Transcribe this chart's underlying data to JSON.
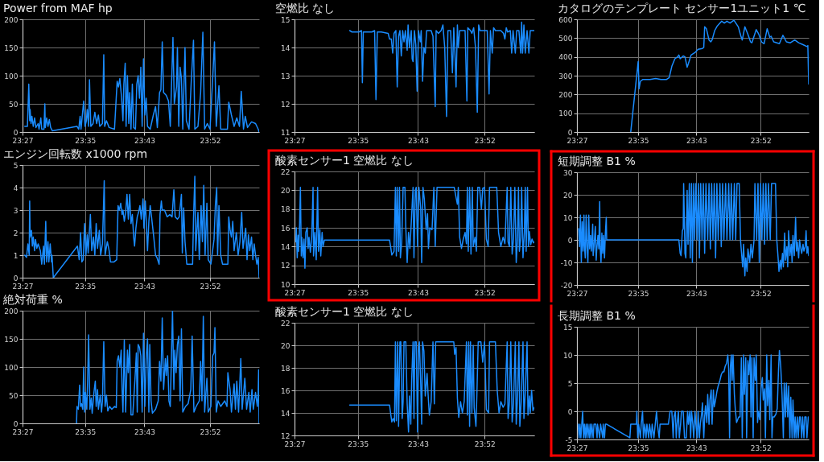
{
  "chart_data": [
    {
      "type": "line",
      "title": "Power from MAF hp",
      "color": "#1a8cff",
      "grid": true,
      "xlim": [
        23.45,
        23.98
      ],
      "xticks": [
        {
          "value": 23.45,
          "label": "23:27"
        },
        {
          "value": 23.59,
          "label": "23:35"
        },
        {
          "value": 23.723,
          "label": "23:43"
        },
        {
          "value": 23.87,
          "label": "23:52"
        }
      ],
      "ylim": [
        0,
        200
      ],
      "yticks": [
        0,
        50,
        100,
        150,
        200
      ],
      "x": [
        23.455,
        23.461,
        23.464,
        23.466,
        23.467,
        23.469,
        23.471,
        23.474,
        23.477,
        23.48,
        23.485,
        23.487,
        23.491,
        23.493,
        23.498,
        23.5,
        23.501,
        23.504,
        23.507,
        23.51,
        23.513,
        23.517,
        23.572,
        23.576,
        23.579,
        23.581,
        23.587,
        23.59,
        23.593,
        23.595,
        23.598,
        23.6,
        23.603,
        23.608,
        23.612,
        23.616,
        23.62,
        23.623,
        23.629,
        23.632,
        23.634,
        23.638,
        23.644,
        23.656,
        23.662,
        23.665,
        23.668,
        23.672,
        23.675,
        23.677,
        23.68,
        23.682,
        23.685,
        23.688,
        23.69,
        23.693,
        23.696,
        23.699,
        23.703,
        23.706,
        23.709,
        23.712,
        23.715,
        23.718,
        23.721,
        23.724,
        23.727,
        23.73,
        23.736,
        23.743,
        23.748,
        23.752,
        23.757,
        23.76,
        23.763,
        23.766,
        23.772,
        23.777,
        23.781,
        23.787,
        23.79,
        23.795,
        23.797,
        23.8,
        23.803,
        23.806,
        23.809,
        23.814,
        23.817,
        23.823,
        23.828,
        23.833,
        23.836,
        23.843,
        23.849,
        23.854,
        23.858,
        23.864,
        23.87,
        23.876,
        23.88,
        23.884,
        23.89,
        23.894,
        23.909,
        23.912,
        23.918,
        23.924,
        23.93,
        23.936,
        23.94,
        23.945,
        23.949,
        23.954,
        23.963,
        23.972,
        23.978,
        23.98
      ],
      "values": [
        10,
        10,
        85,
        20,
        40,
        15,
        28,
        10,
        25,
        8,
        15,
        5,
        25,
        5,
        5,
        50,
        8,
        25,
        10,
        22,
        8,
        2,
        10,
        5,
        28,
        5,
        55,
        10,
        20,
        40,
        10,
        93,
        10,
        15,
        35,
        15,
        30,
        10,
        15,
        137,
        10,
        20,
        8,
        5,
        90,
        80,
        95,
        60,
        20,
        85,
        122,
        10,
        100,
        15,
        70,
        5,
        85,
        8,
        5,
        85,
        100,
        60,
        115,
        10,
        130,
        30,
        60,
        10,
        5,
        30,
        45,
        8,
        70,
        75,
        160,
        70,
        65,
        55,
        10,
        168,
        50,
        80,
        150,
        10,
        115,
        95,
        5,
        150,
        20,
        5,
        90,
        163,
        5,
        10,
        70,
        177,
        5,
        15,
        5,
        95,
        160,
        10,
        82,
        5,
        5,
        53,
        30,
        10,
        25,
        10,
        72,
        5,
        28,
        8,
        18,
        15,
        5,
        0
      ]
    },
    {
      "type": "line",
      "title": "エンジン回転数 x1000 rpm",
      "color": "#1a8cff",
      "grid": true,
      "xlim": [
        23.45,
        23.98
      ],
      "xticks": [
        {
          "value": 23.45,
          "label": "23:27"
        },
        {
          "value": 23.59,
          "label": "23:35"
        },
        {
          "value": 23.723,
          "label": "23:43"
        },
        {
          "value": 23.87,
          "label": "23:52"
        }
      ],
      "ylim": [
        0,
        5
      ],
      "yticks": [
        0,
        1,
        2,
        3,
        4,
        5
      ],
      "x": [
        23.455,
        23.459,
        23.462,
        23.465,
        23.466,
        23.467,
        23.47,
        23.472,
        23.474,
        23.477,
        23.479,
        23.482,
        23.485,
        23.49,
        23.493,
        23.497,
        23.499,
        23.502,
        23.504,
        23.507,
        23.509,
        23.512,
        23.515,
        23.516,
        23.519,
        23.573,
        23.577,
        23.58,
        23.583,
        23.586,
        23.589,
        23.592,
        23.595,
        23.597,
        23.602,
        23.605,
        23.609,
        23.612,
        23.615,
        23.618,
        23.622,
        23.625,
        23.629,
        23.633,
        23.635,
        23.64,
        23.644,
        23.647,
        23.655,
        23.661,
        23.664,
        23.667,
        23.67,
        23.673,
        23.675,
        23.678,
        23.681,
        23.684,
        23.687,
        23.69,
        23.693,
        23.696,
        23.699,
        23.701,
        23.704,
        23.707,
        23.71,
        23.713,
        23.716,
        23.72,
        23.722,
        23.725,
        23.727,
        23.73,
        23.733,
        23.736,
        23.739,
        23.744,
        23.748,
        23.751,
        23.756,
        23.758,
        23.761,
        23.763,
        23.768,
        23.774,
        23.78,
        23.785,
        23.789,
        23.792,
        23.797,
        23.801,
        23.806,
        23.808,
        23.811,
        23.814,
        23.818,
        23.826,
        23.831,
        23.833,
        23.836,
        23.838,
        23.843,
        23.846,
        23.85,
        23.853,
        23.856,
        23.859,
        23.863,
        23.866,
        23.872,
        23.879,
        23.882,
        23.885,
        23.887,
        23.89,
        23.894,
        23.898,
        23.91,
        23.912,
        23.915,
        23.918,
        23.921,
        23.924,
        23.929,
        23.933,
        23.937,
        23.941,
        23.944,
        23.95,
        23.953,
        23.956,
        23.959,
        23.963,
        23.966,
        23.969,
        23.972,
        23.975,
        23.978,
        23.98
      ],
      "values": [
        1.0,
        0.9,
        1.5,
        1.0,
        3.4,
        1.8,
        2.1,
        1.4,
        1.8,
        1.2,
        1.7,
        1.3,
        1.5,
        1.2,
        0.6,
        1.4,
        0.6,
        2.5,
        0.7,
        1.6,
        0.7,
        1.5,
        0.7,
        1.0,
        0,
        1.4,
        0.8,
        2.0,
        0.7,
        0.8,
        2.4,
        1.0,
        1.9,
        1.1,
        2.8,
        1.2,
        1.8,
        1.0,
        2.4,
        1.3,
        2.1,
        1.0,
        1.5,
        4.3,
        1.0,
        1.6,
        1.2,
        0.7,
        0.7,
        0.8,
        3.2,
        3.0,
        3.3,
        2.8,
        3.0,
        2.5,
        2.9,
        3.7,
        2.6,
        3.7,
        2.4,
        2.8,
        1.8,
        1.4,
        2.2,
        2.7,
        2.9,
        3.2,
        2.6,
        3.5,
        2.2,
        3.4,
        2.6,
        1.2,
        2.5,
        3.2,
        2.7,
        1.8,
        1.0,
        0.9,
        0.6,
        2.8,
        3.4,
        3.0,
        3.0,
        2.7,
        2.8,
        2.7,
        3.9,
        2.7,
        2.6,
        2.7,
        3.7,
        1.1,
        3.1,
        1.6,
        0.6,
        0.6,
        0.6,
        2.6,
        4.5,
        1.2,
        2.9,
        0.8,
        3.2,
        1.6,
        4.1,
        1.0,
        3.3,
        0.8,
        0.6,
        1.7,
        3.2,
        4.0,
        1.0,
        3.2,
        1.0,
        0.6,
        0.6,
        2.7,
        2.1,
        1.8,
        2.5,
        1.2,
        2.0,
        1.0,
        1.6,
        2.9,
        1.3,
        2.2,
        0.8,
        1.9,
        1.2,
        1.8,
        0.8,
        1.5,
        1.0,
        0.6,
        0.9,
        0
      ]
    },
    {
      "type": "line",
      "title": "絶対荷重 %",
      "color": "#1a8cff",
      "grid": true,
      "xlim": [
        23.45,
        23.98
      ],
      "xticks": [
        {
          "value": 23.45,
          "label": "23:27"
        },
        {
          "value": 23.59,
          "label": "23:35"
        },
        {
          "value": 23.723,
          "label": "23:43"
        },
        {
          "value": 23.87,
          "label": "23:52"
        }
      ],
      "ylim": [
        0,
        200
      ],
      "yticks": [
        0,
        50,
        100,
        150,
        200
      ],
      "x": [
        23.571,
        23.572,
        23.575,
        23.578,
        23.58,
        23.582,
        23.585,
        23.587,
        23.589,
        23.591,
        23.594,
        23.596,
        23.598,
        23.601,
        23.604,
        23.606,
        23.61,
        23.613,
        23.615,
        23.618,
        23.62,
        23.624,
        23.627,
        23.629,
        23.632,
        23.635,
        23.638,
        23.641,
        23.645,
        23.65,
        23.656,
        23.66,
        23.662,
        23.665,
        23.668,
        23.671,
        23.673,
        23.675,
        23.678,
        23.681,
        23.685,
        23.687,
        23.69,
        23.693,
        23.697,
        23.702,
        23.705,
        23.707,
        23.709,
        23.712,
        23.715,
        23.718,
        23.721,
        23.724,
        23.727,
        23.73,
        23.733,
        23.735,
        23.738,
        23.741,
        23.748,
        23.754,
        23.757,
        23.76,
        23.763,
        23.766,
        23.77,
        23.772,
        23.775,
        23.778,
        23.781,
        23.786,
        23.789,
        23.791,
        23.794,
        23.797,
        23.8,
        23.803,
        23.806,
        23.809,
        23.815,
        23.821,
        23.827,
        23.83,
        23.834,
        23.839,
        23.846,
        23.849,
        23.852,
        23.855,
        23.858,
        23.863,
        23.866,
        23.872,
        23.876,
        23.879,
        23.881,
        23.884,
        23.888,
        23.894,
        23.903,
        23.908,
        23.91,
        23.915,
        23.918,
        23.924,
        23.927,
        23.93,
        23.934,
        23.939,
        23.942,
        23.948,
        23.952,
        23.957,
        23.96,
        23.964,
        23.967,
        23.972,
        23.976,
        23.978,
        23.979,
        23.98
      ],
      "values": [
        0,
        30,
        25,
        68,
        30,
        35,
        25,
        100,
        20,
        55,
        25,
        80,
        157,
        25,
        45,
        18,
        55,
        75,
        30,
        60,
        25,
        50,
        20,
        40,
        145,
        30,
        50,
        22,
        30,
        25,
        30,
        28,
        110,
        120,
        100,
        130,
        60,
        20,
        148,
        20,
        130,
        90,
        140,
        15,
        15,
        80,
        125,
        20,
        140,
        135,
        120,
        20,
        160,
        30,
        115,
        150,
        20,
        140,
        40,
        18,
        25,
        40,
        110,
        75,
        187,
        60,
        115,
        85,
        120,
        40,
        30,
        200,
        60,
        130,
        90,
        140,
        155,
        40,
        168,
        20,
        30,
        35,
        60,
        155,
        20,
        30,
        40,
        110,
        40,
        190,
        20,
        80,
        20,
        30,
        120,
        125,
        170,
        20,
        40,
        30,
        40,
        30,
        90,
        60,
        20,
        70,
        25,
        75,
        20,
        115,
        25,
        80,
        25,
        55,
        20,
        60,
        25,
        55,
        30,
        55,
        95,
        0
      ]
    },
    {
      "type": "line",
      "title": "空燃比 なし",
      "color": "#1a8cff",
      "grid": true,
      "xlim": [
        23.45,
        23.98
      ],
      "xticks": [
        {
          "value": 23.45,
          "label": "23:27"
        },
        {
          "value": 23.59,
          "label": "23:35"
        },
        {
          "value": 23.723,
          "label": "23:43"
        },
        {
          "value": 23.87,
          "label": "23:52"
        }
      ],
      "ylim": [
        11,
        15
      ],
      "yticks": [
        11,
        12,
        13,
        14,
        15
      ],
      "x": [
        23.572,
        23.577,
        23.583,
        23.592,
        23.598,
        23.6,
        23.602,
        23.613,
        23.621,
        23.627,
        23.63,
        23.633,
        23.642,
        23.657,
        23.66,
        23.664,
        23.667,
        23.67,
        23.674,
        23.677,
        23.68,
        23.683,
        23.686,
        23.689,
        23.692,
        23.695,
        23.699,
        23.701,
        23.704,
        23.708,
        23.71,
        23.712,
        23.715,
        23.718,
        23.721,
        23.724,
        23.728,
        23.73,
        23.733,
        23.736,
        23.739,
        23.742,
        23.748,
        23.752,
        23.756,
        23.761,
        23.763,
        23.768,
        23.774,
        23.778,
        23.782,
        23.786,
        23.789,
        23.795,
        23.799,
        23.802,
        23.805,
        23.807,
        23.81,
        23.812,
        23.815,
        23.821,
        23.827,
        23.831,
        23.833,
        23.839,
        23.842,
        23.846,
        23.85,
        23.854,
        23.857,
        23.86,
        23.865,
        23.871,
        23.876,
        23.88,
        23.883,
        23.887,
        23.89,
        23.894,
        23.9,
        23.906,
        23.912,
        23.915,
        23.918,
        23.921,
        23.927,
        23.93,
        23.933,
        23.938,
        23.941,
        23.946,
        23.95,
        23.952,
        23.954,
        23.957,
        23.96,
        23.964,
        23.968,
        23.971,
        23.98
      ],
      "values": [
        14.6,
        14.55,
        14.55,
        14.55,
        14.6,
        12.75,
        14.55,
        14.55,
        14.55,
        14.6,
        12.15,
        14.55,
        14.55,
        14.5,
        14.3,
        14.3,
        13.8,
        14.5,
        14.6,
        12.6,
        14.4,
        14.6,
        13.7,
        14.6,
        14.2,
        14.6,
        13.9,
        14.8,
        14.0,
        14.6,
        13.6,
        13.5,
        14.6,
        14.1,
        12.45,
        14.6,
        14.2,
        14.6,
        12.8,
        14.0,
        13.8,
        14.6,
        14.6,
        14.6,
        14.4,
        11.9,
        14.6,
        14.5,
        14.6,
        14.8,
        14.0,
        11.55,
        14.6,
        14.6,
        13.1,
        14.7,
        13.6,
        12.6,
        14.8,
        14.0,
        14.6,
        14.6,
        14.6,
        12.1,
        14.7,
        14.6,
        14.5,
        14.7,
        14.0,
        11.7,
        14.8,
        14.6,
        14.6,
        14.6,
        14.6,
        12.35,
        14.6,
        13.8,
        14.7,
        14.6,
        14.6,
        14.6,
        14.5,
        14.3,
        14.7,
        14.55,
        14.6,
        13.8,
        14.6,
        13.8,
        14.6,
        14.6,
        13.8,
        14.9,
        13.8,
        14.8,
        13.8,
        14.6,
        13.8,
        14.6,
        14.6
      ]
    },
    {
      "type": "line",
      "title": "酸素センサー1 空燃比 なし",
      "color": "#1a8cff",
      "grid": true,
      "xlim": [
        23.45,
        23.98
      ],
      "xticks": [
        {
          "value": 23.45,
          "label": "23:27"
        },
        {
          "value": 23.59,
          "label": "23:35"
        },
        {
          "value": 23.723,
          "label": "23:43"
        },
        {
          "value": 23.87,
          "label": "23:52"
        }
      ],
      "ylim": [
        10,
        22
      ],
      "yticks": [
        10,
        12,
        14,
        16,
        18,
        20,
        22
      ],
      "x": [
        23.453,
        23.454,
        23.456,
        23.458,
        23.459,
        23.461,
        23.463,
        23.465,
        23.466,
        23.469,
        23.471,
        23.473,
        23.475,
        23.478,
        23.48,
        23.482,
        23.485,
        23.488,
        23.491,
        23.492,
        23.495,
        23.498,
        23.501,
        23.503,
        23.506,
        23.508,
        23.511,
        23.513,
        23.516,
        23.566,
        23.624,
        23.66,
        23.663,
        23.665,
        23.67,
        23.673,
        23.675,
        23.677,
        23.68,
        23.682,
        23.684,
        23.687,
        23.69,
        23.694,
        23.696,
        23.699,
        23.702,
        23.705,
        23.708,
        23.712,
        23.714,
        23.717,
        23.719,
        23.722,
        23.725,
        23.729,
        23.731,
        23.734,
        23.737,
        23.741,
        23.744,
        23.746,
        23.749,
        23.754,
        23.758,
        23.761,
        23.765,
        23.777,
        23.795,
        23.803,
        23.806,
        23.81,
        23.812,
        23.815,
        23.819,
        23.823,
        23.827,
        23.83,
        23.832,
        23.834,
        23.837,
        23.84,
        23.843,
        23.845,
        23.849,
        23.852,
        23.855,
        23.859,
        23.863,
        23.866,
        23.87,
        23.874,
        23.878,
        23.881,
        23.89,
        23.897,
        23.901,
        23.906,
        23.911,
        23.915,
        23.92,
        23.922,
        23.925,
        23.928,
        23.931,
        23.934,
        23.937,
        23.94,
        23.943,
        23.945,
        23.947,
        23.95,
        23.952,
        23.955,
        23.958,
        23.96,
        23.962,
        23.965,
        23.967,
        23.969,
        23.972,
        23.975,
        23.978,
        23.98
      ],
      "values": [
        14.5,
        16.0,
        12.8,
        15.2,
        13.5,
        15.8,
        20.3,
        13.0,
        15.0,
        12.8,
        14.8,
        11.7,
        15.5,
        16.0,
        13.8,
        15.0,
        13.4,
        15.0,
        20.3,
        13.0,
        15.5,
        12.6,
        20.3,
        13.5,
        15.8,
        13.0,
        15.5,
        14.0,
        14.7,
        14.7,
        14.7,
        14.7,
        13.8,
        13.1,
        13.5,
        20.3,
        13.0,
        20.3,
        13.5,
        20.3,
        12.8,
        14.5,
        20.3,
        20.3,
        16.0,
        12.3,
        15.5,
        13.8,
        16.5,
        20.3,
        12.8,
        20.0,
        20.3,
        14.0,
        20.3,
        18.0,
        12.3,
        20.3,
        19.0,
        15.8,
        17.5,
        13.8,
        16.0,
        15.8,
        20.3,
        14.0,
        20.3,
        20.3,
        20.3,
        20.3,
        19.5,
        18.5,
        20.3,
        15.0,
        13.8,
        14.8,
        15.5,
        14.3,
        20.3,
        13.5,
        20.3,
        13.2,
        20.3,
        14.0,
        15.0,
        13.5,
        20.3,
        20.3,
        18.0,
        20.2,
        20.3,
        14.8,
        14.0,
        20.3,
        20.3,
        20.3,
        15.5,
        14.0,
        15.0,
        14.3,
        20.3,
        14.5,
        14.0,
        20.3,
        13.2,
        14.8,
        20.3,
        12.3,
        15.0,
        20.3,
        13.5,
        15.0,
        20.3,
        12.8,
        15.5,
        20.3,
        13.5,
        20.3,
        14.0,
        15.6,
        14.2,
        14.8,
        14.4,
        14.5
      ]
    },
    {
      "type": "line",
      "title": "酸素センサー1 空燃比 なし",
      "color": "#1a8cff",
      "grid": true,
      "xlim": [
        23.45,
        23.98
      ],
      "xticks": [
        {
          "value": 23.45,
          "label": "23:27"
        },
        {
          "value": 23.59,
          "label": "23:35"
        },
        {
          "value": 23.723,
          "label": "23:43"
        },
        {
          "value": 23.87,
          "label": "23:52"
        }
      ],
      "ylim": [
        12,
        22
      ],
      "yticks": [
        12,
        14,
        16,
        18,
        20,
        22
      ],
      "x": [
        23.572,
        23.624,
        23.66,
        23.663,
        23.665,
        23.668,
        23.671,
        23.673,
        23.675,
        23.678,
        23.68,
        23.683,
        23.685,
        23.688,
        23.69,
        23.692,
        23.696,
        23.699,
        23.702,
        23.704,
        23.707,
        23.709,
        23.712,
        23.714,
        23.716,
        23.719,
        23.722,
        23.724,
        23.726,
        23.729,
        23.731,
        23.733,
        23.736,
        23.739,
        23.743,
        23.745,
        23.748,
        23.752,
        23.756,
        23.759,
        23.762,
        23.777,
        23.795,
        23.802,
        23.804,
        23.807,
        23.81,
        23.813,
        23.817,
        23.821,
        23.825,
        23.83,
        23.832,
        23.835,
        23.837,
        23.839,
        23.842,
        23.845,
        23.847,
        23.851,
        23.853,
        23.856,
        23.862,
        23.866,
        23.87,
        23.874,
        23.879,
        23.881,
        23.887,
        23.894,
        23.898,
        23.902,
        23.906,
        23.911,
        23.915,
        23.92,
        23.922,
        23.925,
        23.928,
        23.931,
        23.934,
        23.938,
        23.94,
        23.943,
        23.946,
        23.948,
        23.951,
        23.955,
        23.957,
        23.96,
        23.964,
        23.966,
        23.969,
        23.971,
        23.974,
        23.977,
        23.98
      ],
      "values": [
        14.7,
        14.7,
        14.7,
        13.8,
        13.2,
        13.5,
        13.2,
        20.3,
        13.3,
        20.3,
        12.8,
        20.3,
        20.3,
        13.5,
        15.0,
        20.3,
        20.3,
        14.8,
        12.3,
        15.5,
        13.0,
        17.0,
        20.3,
        13.5,
        20.3,
        20.3,
        12.3,
        19.5,
        20.3,
        16.5,
        13.0,
        20.3,
        19.5,
        15.5,
        17.5,
        15.8,
        13.8,
        15.0,
        20.3,
        14.8,
        20.3,
        20.3,
        20.3,
        20.3,
        19.2,
        19.8,
        15.3,
        13.6,
        15.0,
        14.0,
        15.0,
        20.3,
        13.8,
        20.3,
        12.8,
        20.3,
        14.0,
        20.0,
        14.5,
        12.8,
        15.5,
        20.3,
        20.3,
        18.5,
        20.3,
        14.3,
        14.0,
        20.3,
        20.3,
        20.3,
        16.0,
        14.0,
        15.0,
        14.5,
        14.8,
        20.3,
        13.5,
        15.0,
        20.3,
        13.2,
        14.8,
        20.3,
        13.0,
        15.5,
        20.3,
        12.8,
        15.0,
        20.3,
        13.5,
        15.8,
        20.3,
        13.8,
        15.5,
        14.0,
        16.0,
        14.2,
        14.5
      ]
    },
    {
      "type": "line",
      "title": "カタログのテンプレート センサー1ユニット1 ℃",
      "color": "#1a8cff",
      "grid": true,
      "xlim": [
        23.45,
        23.98
      ],
      "xticks": [
        {
          "value": 23.45,
          "label": "23:27"
        },
        {
          "value": 23.59,
          "label": "23:35"
        },
        {
          "value": 23.723,
          "label": "23:43"
        },
        {
          "value": 23.87,
          "label": "23:52"
        }
      ],
      "ylim": [
        0,
        600
      ],
      "yticks": [
        0,
        100,
        200,
        300,
        400,
        500,
        600
      ],
      "x": [
        23.573,
        23.59,
        23.592,
        23.595,
        23.601,
        23.617,
        23.63,
        23.642,
        23.655,
        23.661,
        23.667,
        23.674,
        23.68,
        23.683,
        23.686,
        23.693,
        23.697,
        23.702,
        23.705,
        23.711,
        23.721,
        23.727,
        23.737,
        23.74,
        23.742,
        23.746,
        23.752,
        23.756,
        23.759,
        23.765,
        23.771,
        23.781,
        23.787,
        23.793,
        23.8,
        23.809,
        23.819,
        23.825,
        23.828,
        23.834,
        23.841,
        23.847,
        23.85,
        23.86,
        23.866,
        23.872,
        23.878,
        23.885,
        23.891,
        23.894,
        23.9,
        23.913,
        23.921,
        23.929,
        23.938,
        23.948,
        23.957,
        23.967,
        23.976,
        23.978,
        23.98
      ],
      "values": [
        0,
        375,
        230,
        270,
        280,
        280,
        285,
        280,
        280,
        290,
        350,
        390,
        400,
        410,
        390,
        405,
        400,
        345,
        365,
        410,
        425,
        440,
        445,
        450,
        560,
        550,
        490,
        480,
        490,
        540,
        565,
        590,
        580,
        590,
        580,
        595,
        560,
        510,
        490,
        560,
        520,
        480,
        475,
        545,
        520,
        480,
        470,
        550,
        505,
        510,
        480,
        470,
        515,
        480,
        475,
        490,
        475,
        465,
        455,
        460,
        255
      ]
    },
    {
      "type": "line",
      "title": "短期調整 B1 %",
      "color": "#1a8cff",
      "grid": true,
      "xlim": [
        23.45,
        23.98
      ],
      "xticks": [
        {
          "value": 23.45,
          "label": "23:27"
        },
        {
          "value": 23.59,
          "label": "23:35"
        },
        {
          "value": 23.723,
          "label": "23:43"
        },
        {
          "value": 23.87,
          "label": "23:52"
        }
      ],
      "ylim": [
        -20,
        30
      ],
      "yticks": [
        -20,
        -10,
        0,
        10,
        20,
        30
      ],
      "x": [
        23.454,
        23.456,
        23.458,
        23.46,
        23.462,
        23.464,
        23.466,
        23.467,
        23.469,
        23.471,
        23.473,
        23.475,
        23.477,
        23.479,
        23.481,
        23.483,
        23.486,
        23.487,
        23.489,
        23.492,
        23.494,
        23.495,
        23.498,
        23.5,
        23.502,
        23.503,
        23.505,
        23.507,
        23.509,
        23.511,
        23.513,
        23.515,
        23.517,
        23.518,
        23.571,
        23.634,
        23.683,
        23.686,
        23.688,
        23.691,
        23.693,
        23.694,
        23.697,
        23.699,
        23.702,
        23.704,
        23.707,
        23.709,
        23.712,
        23.714,
        23.717,
        23.719,
        23.722,
        23.725,
        23.728,
        23.73,
        23.733,
        23.736,
        23.739,
        23.742,
        23.745,
        23.749,
        23.752,
        23.755,
        23.758,
        23.761,
        23.764,
        23.767,
        23.77,
        23.773,
        23.777,
        23.78,
        23.783,
        23.786,
        23.79,
        23.793,
        23.797,
        23.8,
        23.803,
        23.806,
        23.81,
        23.813,
        23.816,
        23.818,
        23.821,
        23.824,
        23.826,
        23.829,
        23.831,
        23.834,
        23.836,
        23.839,
        23.841,
        23.845,
        23.848,
        23.851,
        23.855,
        23.857,
        23.861,
        23.864,
        23.867,
        23.87,
        23.873,
        23.876,
        23.879,
        23.882,
        23.885,
        23.888,
        23.892,
        23.895,
        23.901,
        23.904,
        23.907,
        23.91,
        23.912,
        23.915,
        23.917,
        23.92,
        23.922,
        23.925,
        23.927,
        23.93,
        23.932,
        23.934,
        23.937,
        23.94,
        23.942,
        23.944,
        23.947,
        23.95,
        23.952,
        23.954,
        23.957,
        23.959,
        23.962,
        23.964,
        23.967,
        23.969,
        23.972,
        23.974,
        23.976,
        23.978,
        23.98
      ],
      "values": [
        5,
        -3,
        11,
        -10,
        8,
        -5,
        11,
        -2,
        -8,
        11,
        -3,
        -10,
        11,
        -4,
        2,
        -5,
        7,
        -7,
        -3,
        6,
        -9,
        -5,
        2,
        -4,
        17,
        -3,
        -10,
        3,
        -6,
        2,
        -8,
        3,
        10,
        0,
        0,
        0,
        0,
        -6,
        -7,
        4,
        5,
        25,
        -6,
        -8,
        22,
        -2,
        25,
        -8,
        25,
        -10,
        25,
        0,
        25,
        0,
        25,
        -8,
        25,
        0,
        25,
        -6,
        25,
        0,
        25,
        -4,
        25,
        0,
        25,
        -8,
        25,
        0,
        25,
        -3,
        25,
        0,
        25,
        0,
        25,
        0,
        25,
        0,
        25,
        0,
        25,
        25,
        25,
        0,
        -5,
        -12,
        -2,
        -16,
        -8,
        -14,
        -4,
        -10,
        -2,
        -8,
        0,
        25,
        0,
        25,
        -10,
        25,
        0,
        25,
        -2,
        25,
        0,
        25,
        0,
        25,
        25,
        25,
        0,
        -8,
        -14,
        -9,
        -13,
        -6,
        -12,
        3,
        -9,
        -3,
        -12,
        4,
        -7,
        -2,
        -10,
        2,
        -7,
        10,
        -5,
        -1,
        -8,
        0,
        -4,
        -6,
        -2,
        -5,
        -3,
        4,
        -6,
        -3,
        -7
      ]
    },
    {
      "type": "line",
      "title": "長期調整 B1 %",
      "color": "#1a8cff",
      "grid": true,
      "xlim": [
        23.45,
        23.98
      ],
      "xticks": [
        {
          "value": 23.45,
          "label": "23:27"
        },
        {
          "value": 23.59,
          "label": "23:35"
        },
        {
          "value": 23.723,
          "label": "23:43"
        },
        {
          "value": 23.87,
          "label": "23:52"
        }
      ],
      "ylim": [
        -5,
        15
      ],
      "yticks": [
        -5,
        0,
        5,
        10,
        15
      ],
      "x": [
        23.453,
        23.455,
        23.457,
        23.459,
        23.461,
        23.463,
        23.465,
        23.467,
        23.469,
        23.471,
        23.473,
        23.475,
        23.478,
        23.48,
        23.482,
        23.484,
        23.487,
        23.489,
        23.493,
        23.496,
        23.497,
        23.502,
        23.504,
        23.509,
        23.51,
        23.513,
        23.515,
        23.518,
        23.571,
        23.573,
        23.586,
        23.587,
        23.589,
        23.591,
        23.595,
        23.597,
        23.6,
        23.602,
        23.605,
        23.608,
        23.61,
        23.614,
        23.616,
        23.62,
        23.622,
        23.626,
        23.629,
        23.632,
        23.634,
        23.638,
        23.64,
        23.659,
        23.663,
        23.667,
        23.67,
        23.672,
        23.675,
        23.677,
        23.679,
        23.682,
        23.684,
        23.687,
        23.689,
        23.693,
        23.696,
        23.7,
        23.703,
        23.705,
        23.708,
        23.71,
        23.712,
        23.715,
        23.717,
        23.72,
        23.722,
        23.725,
        23.727,
        23.73,
        23.732,
        23.735,
        23.737,
        23.74,
        23.742,
        23.744,
        23.747,
        23.749,
        23.752,
        23.754,
        23.757,
        23.759,
        23.762,
        23.764,
        23.767,
        23.77,
        23.773,
        23.777,
        23.78,
        23.783,
        23.786,
        23.789,
        23.792,
        23.795,
        23.797,
        23.799,
        23.801,
        23.803,
        23.805,
        23.807,
        23.81,
        23.812,
        23.815,
        23.82,
        23.823,
        23.826,
        23.828,
        23.831,
        23.833,
        23.836,
        23.838,
        23.841,
        23.843,
        23.846,
        23.848,
        23.85,
        23.853,
        23.855,
        23.858,
        23.86,
        23.863,
        23.865,
        23.868,
        23.871,
        23.874,
        23.876,
        23.879,
        23.881,
        23.884,
        23.886,
        23.889,
        23.891,
        23.894,
        23.896,
        23.898,
        23.901,
        23.905,
        23.908,
        23.911,
        23.913,
        23.916,
        23.919,
        23.922,
        23.924,
        23.927,
        23.929,
        23.932,
        23.934,
        23.937,
        23.939,
        23.942,
        23.944,
        23.947,
        23.949,
        23.951,
        23.954,
        23.956,
        23.959,
        23.961,
        23.964,
        23.966,
        23.969,
        23.971,
        23.974,
        23.976,
        23.979
      ],
      "values": [
        -2.3,
        -4.7,
        -2.3,
        -4.7,
        -2.3,
        0,
        -4.7,
        -2.3,
        -4.7,
        -2.3,
        -4.7,
        -2.3,
        -4.7,
        -2.3,
        -4.7,
        -2.3,
        -4.7,
        -2.3,
        -2.3,
        -4.7,
        -2.3,
        -4.7,
        -2.3,
        -4.7,
        -2.3,
        -4.7,
        -2.3,
        -2.3,
        -4.7,
        -2.3,
        -2.3,
        0,
        -4.7,
        -2.3,
        -4.7,
        -2.3,
        0,
        -4.7,
        -2.3,
        -4.7,
        -2.3,
        -4.7,
        -2.3,
        -4.7,
        -2.3,
        -4.7,
        -2.3,
        0,
        -2.3,
        -4.7,
        -2.3,
        -2.3,
        0,
        0,
        -4.7,
        -1.0,
        0,
        -4.7,
        -2.3,
        0,
        -4.7,
        -2.3,
        0,
        0,
        -4.7,
        -4.7,
        0,
        -2.3,
        0,
        -4.7,
        0,
        -2.3,
        -4.7,
        0,
        -2.3,
        -4.7,
        0,
        -4.7,
        -2.3,
        -0.5,
        1.5,
        -4.7,
        -1.0,
        1.0,
        -2.0,
        3.0,
        -2.3,
        2.0,
        3.8,
        -2.3,
        3.8,
        0.8,
        2.0,
        3.5,
        4.5,
        5.5,
        6.5,
        7.0,
        7.0,
        8.0,
        8.5,
        10.0,
        7.5,
        -4.7,
        8.0,
        10.0,
        5.5,
        10.0,
        3.0,
        0.5,
        -2.0,
        -1.0,
        -1.0,
        9.5,
        -4.7,
        10.0,
        3.0,
        9.5,
        -4.7,
        9.0,
        6.5,
        10.0,
        -1.0,
        9.5,
        -4.7,
        9.5,
        5.5,
        10.0,
        -2.0,
        0,
        -1.5,
        4.0,
        6.0,
        2.0,
        4.0,
        -4.7,
        10.0,
        1.0,
        5.5,
        -1.5,
        10.0,
        -4.7,
        -1.0,
        -1.0,
        -0.5,
        0.5,
        7.5,
        10.8,
        8.0,
        3.0,
        -4.7,
        5.0,
        -1.0,
        5.0,
        -1.0,
        4.5,
        -4.7,
        2.5,
        -4.7,
        2.0,
        -4.7,
        -1.0,
        -4.7,
        -1.0,
        -4.7,
        -1.0,
        -1.0,
        -4.7,
        -1.0,
        -4.7,
        -1.0,
        -1.0,
        -4.7,
        -1.0
      ]
    }
  ]
}
